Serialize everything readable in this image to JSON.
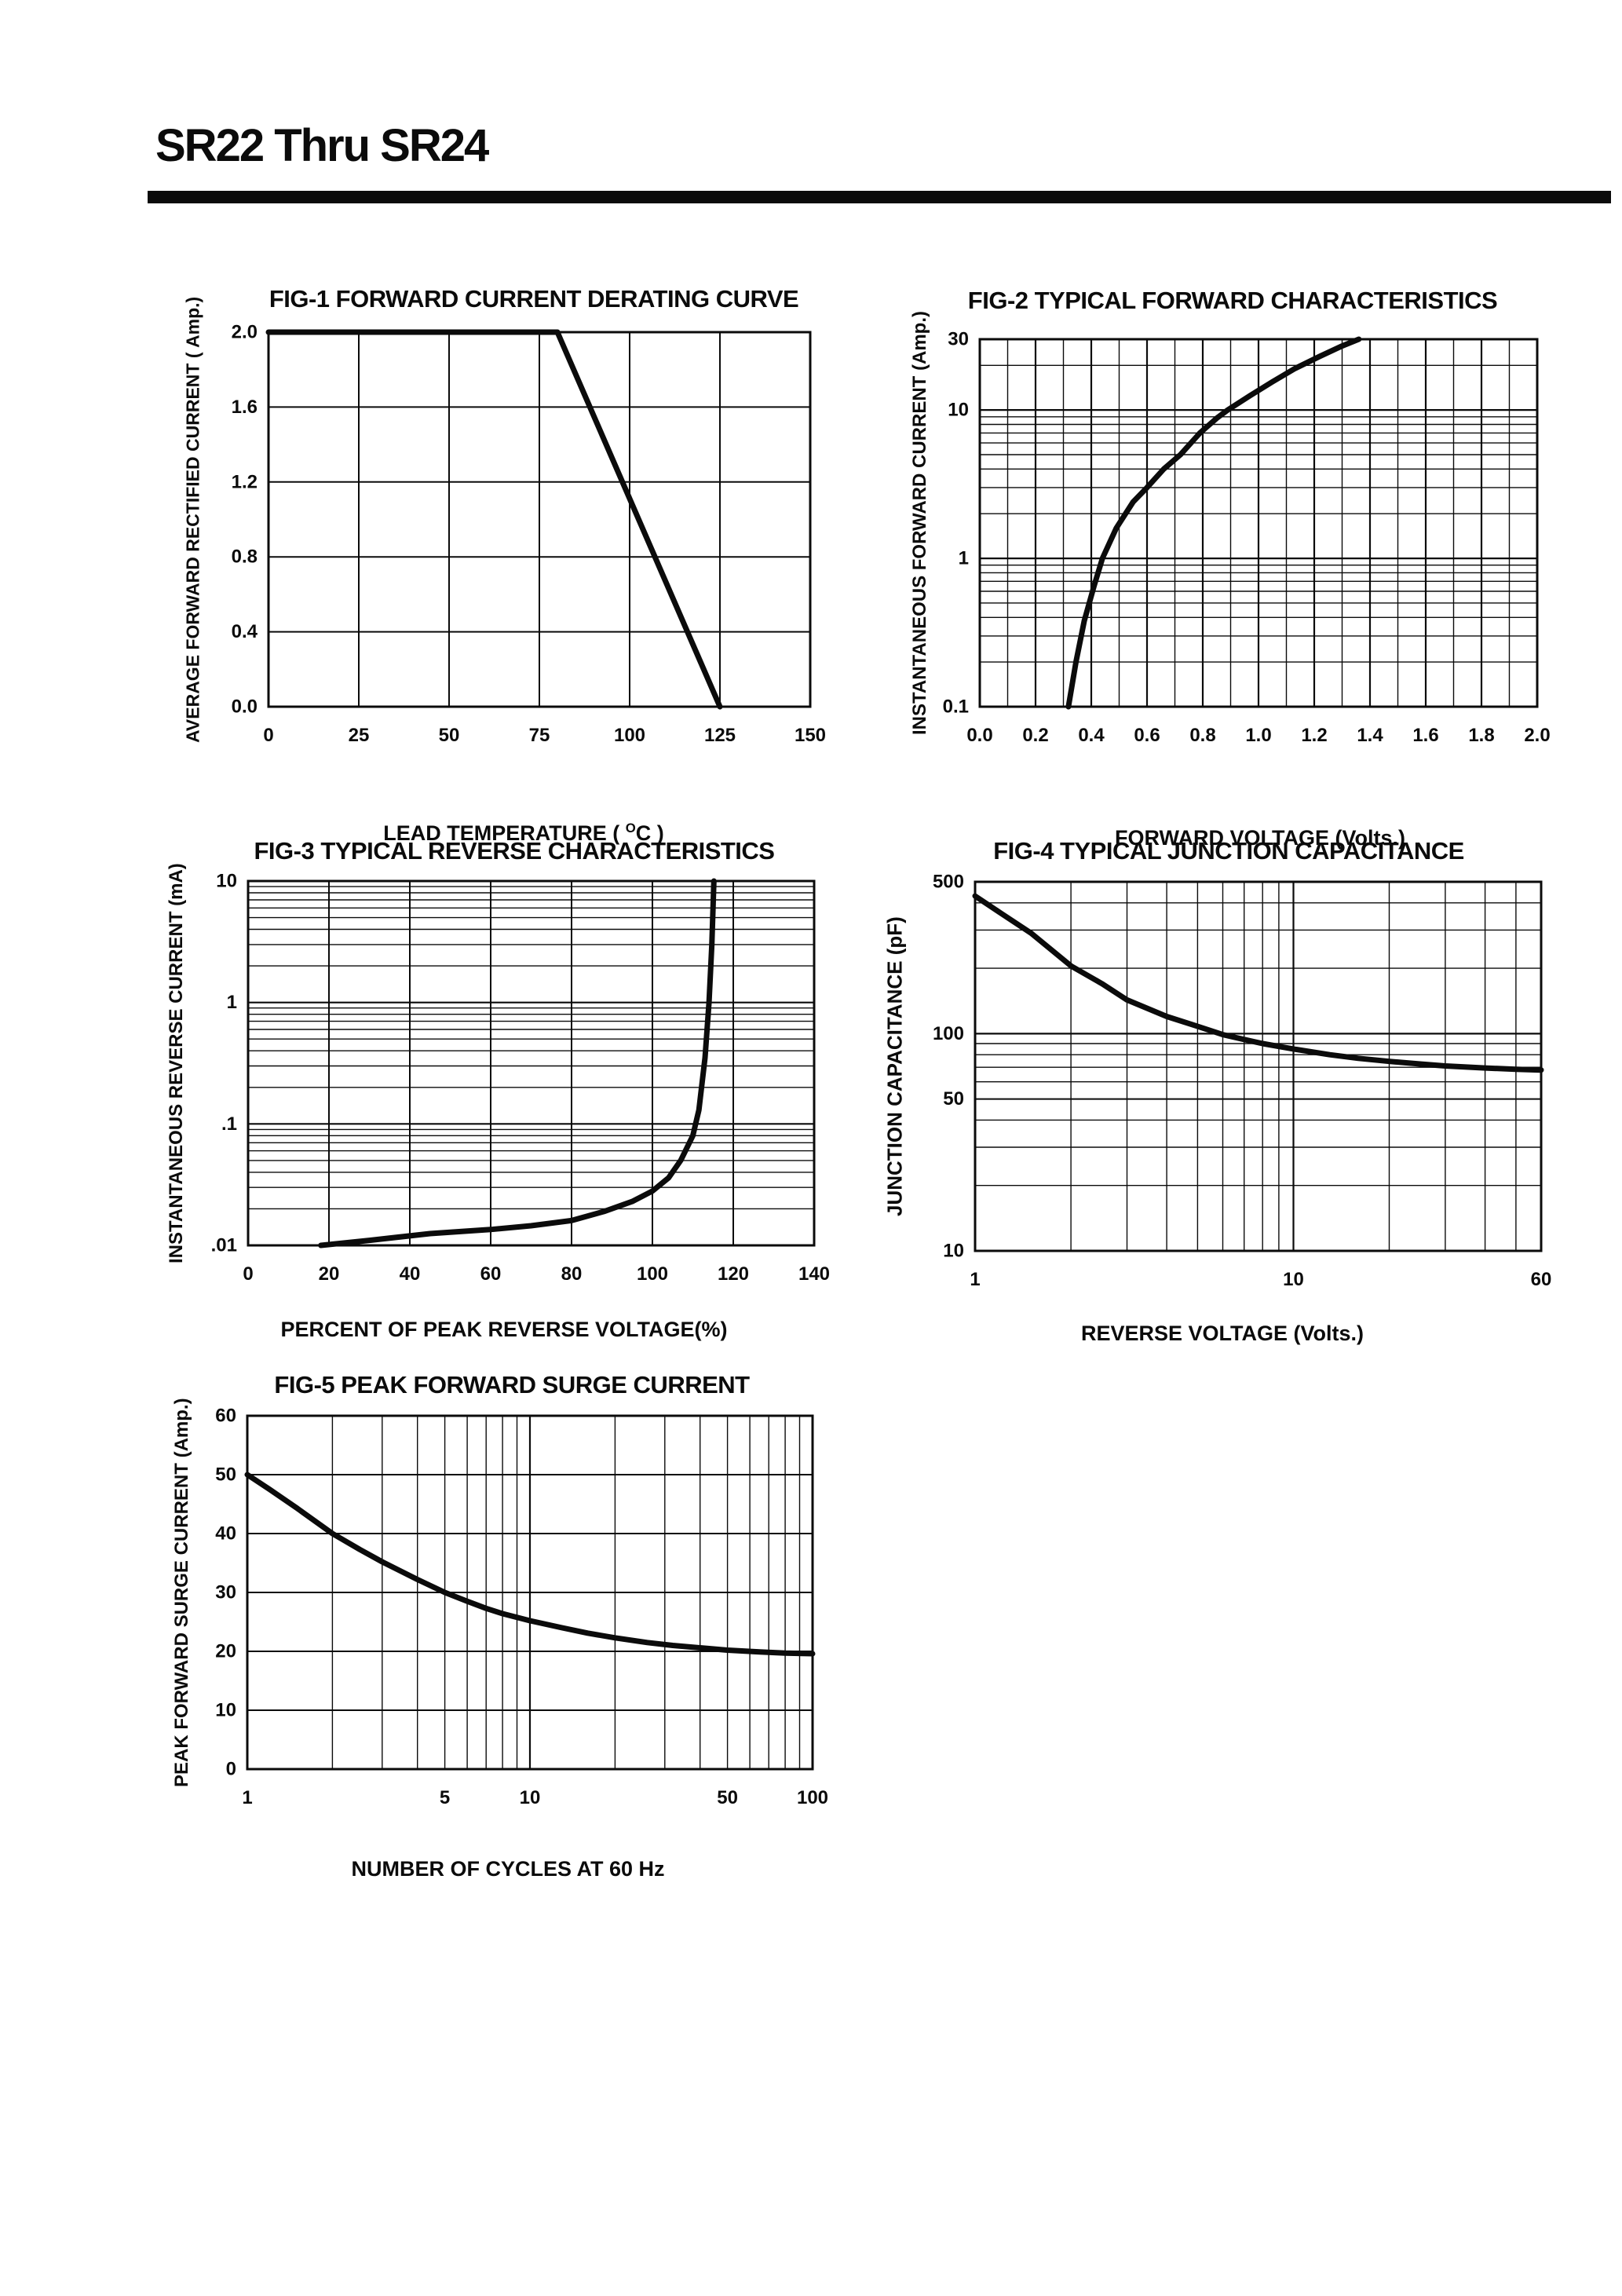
{
  "header": {
    "title": "SR22 Thru SR24"
  },
  "ink_color": "#0b0b0b",
  "paper_color": "#ffffff",
  "chart_data": [
    {
      "id": "fig1",
      "type": "line",
      "title": "FIG-1 FORWARD CURRENT DERATING CURVE",
      "ylabel": "AVERAGE FORWARD RECTIFIED CURRENT ( Amp.)",
      "xlabel": "LEAD TEMPERATURE ( °C )",
      "xlabel_prefix": "LEAD TEMPERATURE ( ",
      "xlabel_sup": "O",
      "xlabel_suffix": "C )",
      "x_axis": {
        "scale": "linear",
        "min": 0,
        "max": 150
      },
      "y_axis": {
        "scale": "linear",
        "min": 0,
        "max": 2.0
      },
      "xticks": [
        [
          0,
          "0"
        ],
        [
          25,
          "25"
        ],
        [
          50,
          "50"
        ],
        [
          75,
          "75"
        ],
        [
          100,
          "100"
        ],
        [
          125,
          "125"
        ],
        [
          150,
          "150"
        ]
      ],
      "yticks": [
        [
          2,
          "2.0"
        ],
        [
          1.6,
          "1.6"
        ],
        [
          1.2,
          "1.2"
        ],
        [
          0.8,
          "0.8"
        ],
        [
          0.4,
          "0.4"
        ],
        [
          0,
          "0.0"
        ]
      ],
      "xgrid": [
        [
          25,
          2
        ],
        [
          50,
          2
        ],
        [
          75,
          2
        ],
        [
          100,
          2
        ],
        [
          125,
          2
        ]
      ],
      "ygrid": [
        [
          0.4,
          2
        ],
        [
          0.8,
          2
        ],
        [
          1.2,
          2
        ],
        [
          1.6,
          2
        ]
      ],
      "series": [
        {
          "name": "derating-curve",
          "points": [
            [
              0,
              2
            ],
            [
              80,
              2
            ],
            [
              125,
              0
            ]
          ]
        }
      ]
    },
    {
      "id": "fig2",
      "type": "line",
      "title": "FIG-2 TYPICAL FORWARD CHARACTERISTICS",
      "ylabel": "INSTANTANEOUS FORWARD CURRENT (Amp.)",
      "xlabel": "FORWARD VOLTAGE (Volts.)",
      "xlabel_prefix": "FORWARD VOLTAGE (Volts.)",
      "xlabel_sup": "",
      "xlabel_suffix": "",
      "x_axis": {
        "scale": "linear",
        "min": 0,
        "max": 2.0
      },
      "y_axis": {
        "scale": "log",
        "min": 0.1,
        "max": 30
      },
      "xticks": [
        [
          0,
          "0.0"
        ],
        [
          0.2,
          "0.2"
        ],
        [
          0.4,
          "0.4"
        ],
        [
          0.6,
          "0.6"
        ],
        [
          0.8,
          "0.8"
        ],
        [
          1.0,
          "1.0"
        ],
        [
          1.2,
          "1.2"
        ],
        [
          1.4,
          "1.4"
        ],
        [
          1.6,
          "1.6"
        ],
        [
          1.8,
          "1.8"
        ],
        [
          2.0,
          "2.0"
        ]
      ],
      "yticks": [
        [
          30,
          "30"
        ],
        [
          10,
          "10"
        ],
        [
          1,
          "1"
        ],
        [
          0.1,
          "0.1"
        ]
      ],
      "xgrid": [
        [
          0.1,
          1.4
        ],
        [
          0.2,
          2.2
        ],
        [
          0.3,
          1.4
        ],
        [
          0.4,
          2.2
        ],
        [
          0.5,
          1.4
        ],
        [
          0.6,
          2.2
        ],
        [
          0.7,
          1.4
        ],
        [
          0.8,
          2.2
        ],
        [
          0.9,
          1.4
        ],
        [
          1.0,
          2.2
        ],
        [
          1.1,
          1.4
        ],
        [
          1.2,
          2.2
        ],
        [
          1.3,
          1.4
        ],
        [
          1.4,
          2.2
        ],
        [
          1.5,
          1.4
        ],
        [
          1.6,
          2.2
        ],
        [
          1.7,
          1.4
        ],
        [
          1.8,
          2.2
        ],
        [
          1.9,
          1.4
        ]
      ],
      "ygrid": [
        [
          0.2,
          1.4
        ],
        [
          0.3,
          1.4
        ],
        [
          0.4,
          1.4
        ],
        [
          0.5,
          1.4
        ],
        [
          0.6,
          1.4
        ],
        [
          0.7,
          1.4
        ],
        [
          0.8,
          1.4
        ],
        [
          0.9,
          1.4
        ],
        [
          1,
          2.2
        ],
        [
          2,
          1.4
        ],
        [
          3,
          1.4
        ],
        [
          4,
          1.4
        ],
        [
          5,
          1.4
        ],
        [
          6,
          1.4
        ],
        [
          7,
          1.4
        ],
        [
          8,
          1.4
        ],
        [
          9,
          1.4
        ],
        [
          10,
          2.2
        ],
        [
          20,
          1.4
        ]
      ],
      "series": [
        {
          "name": "forward-characteristic",
          "points": [
            [
              0.318,
              0.1
            ],
            [
              0.345,
              0.2
            ],
            [
              0.375,
              0.38
            ],
            [
              0.41,
              0.65
            ],
            [
              0.44,
              1.0
            ],
            [
              0.49,
              1.6
            ],
            [
              0.55,
              2.4
            ],
            [
              0.6,
              3.0
            ],
            [
              0.66,
              4.0
            ],
            [
              0.72,
              5.0
            ],
            [
              0.79,
              7.0
            ],
            [
              0.85,
              8.8
            ],
            [
              0.89,
              10
            ],
            [
              0.97,
              12.5
            ],
            [
              1.05,
              15.5
            ],
            [
              1.13,
              19
            ],
            [
              1.22,
              23
            ],
            [
              1.3,
              27
            ],
            [
              1.36,
              30
            ]
          ]
        }
      ]
    },
    {
      "id": "fig3",
      "type": "line",
      "title": "FIG-3 TYPICAL REVERSE CHARACTERISTICS",
      "ylabel": "INSTANTANEOUS REVERSE CURRENT (mA)",
      "xlabel": "PERCENT OF PEAK REVERSE VOLTAGE(%)",
      "xlabel_prefix": "PERCENT OF PEAK REVERSE VOLTAGE(%)",
      "xlabel_sup": "",
      "xlabel_suffix": "",
      "x_axis": {
        "scale": "linear",
        "min": 0,
        "max": 140
      },
      "y_axis": {
        "scale": "log",
        "min": 0.01,
        "max": 10
      },
      "xticks": [
        [
          0,
          "0"
        ],
        [
          20,
          "20"
        ],
        [
          40,
          "40"
        ],
        [
          60,
          "60"
        ],
        [
          80,
          "80"
        ],
        [
          100,
          "100"
        ],
        [
          120,
          "120"
        ],
        [
          140,
          "140"
        ]
      ],
      "yticks": [
        [
          10,
          "10"
        ],
        [
          1,
          "1"
        ],
        [
          0.1,
          ".1"
        ],
        [
          0.01,
          ".01"
        ]
      ],
      "xgrid": [
        [
          20,
          2
        ],
        [
          40,
          2
        ],
        [
          60,
          2
        ],
        [
          80,
          2
        ],
        [
          100,
          2
        ],
        [
          120,
          2
        ]
      ],
      "ygrid": [
        [
          0.02,
          1.4
        ],
        [
          0.03,
          1.4
        ],
        [
          0.04,
          1.4
        ],
        [
          0.05,
          1.4
        ],
        [
          0.06,
          1.4
        ],
        [
          0.07,
          1.4
        ],
        [
          0.08,
          1.4
        ],
        [
          0.09,
          1.4
        ],
        [
          0.1,
          2.2
        ],
        [
          0.2,
          1.4
        ],
        [
          0.3,
          1.4
        ],
        [
          0.4,
          1.4
        ],
        [
          0.5,
          1.4
        ],
        [
          0.6,
          1.4
        ],
        [
          0.7,
          1.4
        ],
        [
          0.8,
          1.4
        ],
        [
          0.9,
          1.4
        ],
        [
          1,
          2.2
        ],
        [
          2,
          1.4
        ],
        [
          3,
          1.4
        ],
        [
          4,
          1.4
        ],
        [
          5,
          1.4
        ],
        [
          6,
          1.4
        ],
        [
          7,
          1.4
        ],
        [
          8,
          1.4
        ],
        [
          9,
          1.4
        ]
      ],
      "series": [
        {
          "name": "reverse-characteristic",
          "points": [
            [
              18,
              0.01
            ],
            [
              30,
              0.011
            ],
            [
              45,
              0.0125
            ],
            [
              60,
              0.0135
            ],
            [
              70,
              0.0145
            ],
            [
              80,
              0.016
            ],
            [
              88,
              0.019
            ],
            [
              95,
              0.023
            ],
            [
              100,
              0.028
            ],
            [
              104,
              0.036
            ],
            [
              107,
              0.05
            ],
            [
              110,
              0.08
            ],
            [
              111.5,
              0.13
            ],
            [
              113,
              0.35
            ],
            [
              114,
              1.0
            ],
            [
              114.7,
              3.0
            ],
            [
              115.2,
              10
            ]
          ]
        }
      ]
    },
    {
      "id": "fig4",
      "type": "line",
      "title": "FIG-4 TYPICAL JUNCTION CAPACITANCE",
      "ylabel": "JUNCTION CAPACITANCE (pF)",
      "xlabel": "REVERSE VOLTAGE (Volts.)",
      "xlabel_prefix": "REVERSE VOLTAGE (Volts.)",
      "xlabel_sup": "",
      "xlabel_suffix": "",
      "x_axis": {
        "scale": "log",
        "min": 1,
        "max": 60
      },
      "y_axis": {
        "scale": "log",
        "min": 10,
        "max": 500
      },
      "xticks": [
        [
          1,
          "1"
        ],
        [
          10,
          "10"
        ],
        [
          60,
          "60"
        ]
      ],
      "yticks": [
        [
          500,
          "500"
        ],
        [
          100,
          "100"
        ],
        [
          50,
          "50"
        ],
        [
          10,
          "10"
        ]
      ],
      "xgrid": [
        [
          2,
          1.4
        ],
        [
          3,
          1.4
        ],
        [
          4,
          1.4
        ],
        [
          5,
          1.4
        ],
        [
          6,
          1.4
        ],
        [
          7,
          1.4
        ],
        [
          8,
          1.4
        ],
        [
          9,
          1.4
        ],
        [
          10,
          2.2
        ],
        [
          20,
          1.4
        ],
        [
          30,
          1.4
        ],
        [
          40,
          1.4
        ],
        [
          50,
          1.4
        ]
      ],
      "ygrid": [
        [
          20,
          1.4
        ],
        [
          30,
          1.4
        ],
        [
          40,
          1.4
        ],
        [
          50,
          2
        ],
        [
          60,
          1.4
        ],
        [
          70,
          1.4
        ],
        [
          80,
          1.4
        ],
        [
          90,
          1.4
        ],
        [
          100,
          2.2
        ],
        [
          200,
          1.4
        ],
        [
          300,
          1.4
        ],
        [
          400,
          1.4
        ]
      ],
      "series": [
        {
          "name": "junction-capacitance",
          "points": [
            [
              1,
              430
            ],
            [
              1.2,
              360
            ],
            [
              1.5,
              290
            ],
            [
              2,
              205
            ],
            [
              2.5,
              170
            ],
            [
              3,
              143
            ],
            [
              4,
              120
            ],
            [
              5,
              108
            ],
            [
              6,
              99
            ],
            [
              7,
              94
            ],
            [
              8,
              90
            ],
            [
              10,
              85
            ],
            [
              13,
              80
            ],
            [
              16,
              77
            ],
            [
              20,
              74.5
            ],
            [
              25,
              72.5
            ],
            [
              30,
              71
            ],
            [
              40,
              69.5
            ],
            [
              50,
              68.5
            ],
            [
              60,
              68
            ]
          ]
        }
      ]
    },
    {
      "id": "fig5",
      "type": "line",
      "title": "FIG-5 PEAK FORWARD SURGE CURRENT",
      "ylabel": "PEAK FORWARD SURGE CURRENT (Amp.)",
      "xlabel": "NUMBER OF CYCLES AT 60 Hz",
      "xlabel_prefix": "NUMBER OF CYCLES AT 60 Hz",
      "xlabel_sup": "",
      "xlabel_suffix": "",
      "x_axis": {
        "scale": "log",
        "min": 1,
        "max": 100
      },
      "y_axis": {
        "scale": "linear",
        "min": 0,
        "max": 60
      },
      "xticks": [
        [
          1,
          "1"
        ],
        [
          5,
          "5"
        ],
        [
          10,
          "10"
        ],
        [
          50,
          "50"
        ],
        [
          100,
          "100"
        ]
      ],
      "yticks": [
        [
          60,
          "60"
        ],
        [
          50,
          "50"
        ],
        [
          40,
          "40"
        ],
        [
          30,
          "30"
        ],
        [
          20,
          "20"
        ],
        [
          10,
          "10"
        ],
        [
          0,
          "0"
        ]
      ],
      "xgrid": [
        [
          2,
          1.4
        ],
        [
          3,
          1.4
        ],
        [
          4,
          1.4
        ],
        [
          5,
          1.4
        ],
        [
          6,
          1.4
        ],
        [
          7,
          1.4
        ],
        [
          8,
          1.4
        ],
        [
          9,
          1.4
        ],
        [
          10,
          2.2
        ],
        [
          20,
          1.4
        ],
        [
          30,
          1.4
        ],
        [
          40,
          1.4
        ],
        [
          50,
          1.4
        ],
        [
          60,
          1.4
        ],
        [
          70,
          1.4
        ],
        [
          80,
          1.4
        ],
        [
          90,
          1.4
        ]
      ],
      "ygrid": [
        [
          10,
          2
        ],
        [
          20,
          2
        ],
        [
          30,
          2
        ],
        [
          40,
          2
        ],
        [
          50,
          2
        ]
      ],
      "series": [
        {
          "name": "surge-current",
          "points": [
            [
              1,
              50
            ],
            [
              1.2,
              47.5
            ],
            [
              1.5,
              44.3
            ],
            [
              2,
              40
            ],
            [
              2.5,
              37.3
            ],
            [
              3,
              35.2
            ],
            [
              4,
              32.2
            ],
            [
              5,
              30
            ],
            [
              6,
              28.5
            ],
            [
              7,
              27.3
            ],
            [
              8,
              26.4
            ],
            [
              10,
              25.2
            ],
            [
              13,
              24
            ],
            [
              16,
              23.1
            ],
            [
              20,
              22.3
            ],
            [
              26,
              21.5
            ],
            [
              32,
              21
            ],
            [
              40,
              20.6
            ],
            [
              50,
              20.2
            ],
            [
              65,
              19.9
            ],
            [
              80,
              19.7
            ],
            [
              100,
              19.6
            ]
          ]
        }
      ]
    }
  ]
}
